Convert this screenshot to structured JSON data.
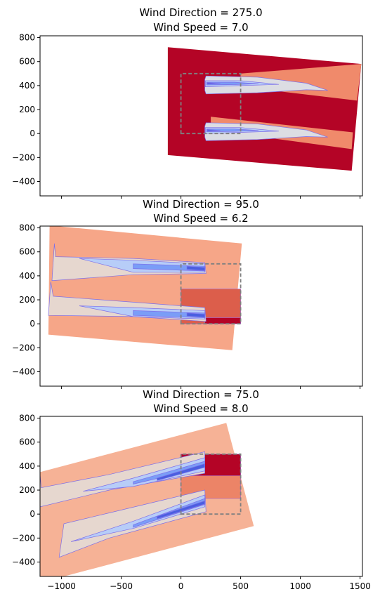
{
  "chart_data": [
    {
      "type": "heatmap",
      "title_line1": "Wind Direction = 275.0",
      "title_line2": "Wind Speed = 7.0",
      "xlim": [
        -1180,
        1520
      ],
      "ylim": [
        -520,
        815
      ],
      "yticks": [
        -400,
        -200,
        0,
        200,
        400,
        600,
        800
      ],
      "ytick_labels": [
        "−400",
        "−200",
        "0",
        "200",
        "400",
        "600",
        "800"
      ],
      "boundary": {
        "x": [
          0,
          0,
          500,
          500
        ],
        "y": [
          0,
          500,
          500,
          0
        ]
      },
      "domain_polygon": [
        [
          -110,
          -180
        ],
        [
          -110,
          720
        ],
        [
          1510,
          580
        ],
        [
          1430,
          -310
        ]
      ],
      "background_color": "#b40426",
      "wake_bands": [
        {
          "polygon": [
            [
              500,
              390
            ],
            [
              500,
              500
            ],
            [
              1510,
              580
            ],
            [
              1475,
              275
            ]
          ],
          "color": "#f08a6b"
        },
        {
          "polygon": [
            [
              250,
              30
            ],
            [
              250,
              140
            ],
            [
              1440,
              10
            ],
            [
              1430,
              -130
            ]
          ],
          "color": "#f08a6b"
        }
      ],
      "wake_contours": [
        {
          "polygon": [
            [
              200,
              360
            ],
            [
              210,
              330
            ],
            [
              640,
              340
            ],
            [
              1050,
              365
            ],
            [
              1230,
              360
            ],
            [
              1050,
              420
            ],
            [
              640,
              470
            ],
            [
              210,
              480
            ],
            [
              200,
              450
            ]
          ],
          "color": "#dcdde3"
        },
        {
          "polygon": [
            [
              205,
              390
            ],
            [
              500,
              400
            ],
            [
              820,
              410
            ],
            [
              500,
              440
            ],
            [
              205,
              440
            ]
          ],
          "color": "#b7cdf8"
        },
        {
          "polygon": [
            [
              215,
              405
            ],
            [
              450,
              408
            ],
            [
              650,
              415
            ],
            [
              450,
              428
            ],
            [
              215,
              428
            ]
          ],
          "color": "#7a9df7"
        },
        {
          "polygon": [
            [
              220,
              412
            ],
            [
              330,
              416
            ],
            [
              220,
              424
            ]
          ],
          "color": "#4a5fe0"
        },
        {
          "polygon": [
            [
              200,
              -30
            ],
            [
              210,
              -60
            ],
            [
              640,
              -50
            ],
            [
              1050,
              -25
            ],
            [
              1230,
              -30
            ],
            [
              1050,
              30
            ],
            [
              640,
              80
            ],
            [
              210,
              90
            ],
            [
              200,
              60
            ]
          ],
          "color": "#dcdde3"
        },
        {
          "polygon": [
            [
              205,
              0
            ],
            [
              500,
              10
            ],
            [
              820,
              20
            ],
            [
              500,
              50
            ],
            [
              205,
              50
            ]
          ],
          "color": "#b7cdf8"
        },
        {
          "polygon": [
            [
              215,
              15
            ],
            [
              450,
              18
            ],
            [
              650,
              25
            ],
            [
              450,
              38
            ],
            [
              215,
              38
            ]
          ],
          "color": "#7a9df7"
        },
        {
          "polygon": [
            [
              220,
              22
            ],
            [
              330,
              26
            ],
            [
              220,
              34
            ]
          ],
          "color": "#4a5fe0"
        }
      ]
    },
    {
      "type": "heatmap",
      "title_line1": "Wind Direction = 95.0",
      "title_line2": "Wind Speed = 6.2",
      "xlim": [
        -1180,
        1520
      ],
      "ylim": [
        -520,
        815
      ],
      "yticks": [
        -400,
        -200,
        0,
        200,
        400,
        600,
        800
      ],
      "ytick_labels": [
        "−400",
        "−200",
        "0",
        "200",
        "400",
        "600",
        "800"
      ],
      "boundary": {
        "x": [
          0,
          0,
          500,
          500
        ],
        "y": [
          0,
          500,
          500,
          0
        ]
      },
      "domain_polygon": [
        [
          -1100,
          820
        ],
        [
          510,
          670
        ],
        [
          430,
          -220
        ],
        [
          -1110,
          -90
        ]
      ],
      "background_color": "#f6a688",
      "patches": [
        {
          "polygon": [
            [
              0,
              0
            ],
            [
              0,
              290
            ],
            [
              500,
              290
            ],
            [
              500,
              0
            ]
          ],
          "color": "#dc5e4b"
        },
        {
          "polygon": [
            [
              200,
              0
            ],
            [
              200,
              50
            ],
            [
              500,
              50
            ],
            [
              500,
              0
            ]
          ],
          "color": "#b40426"
        }
      ],
      "wake_contours": [
        {
          "polygon": [
            [
              -1060,
              670
            ],
            [
              -1050,
              560
            ],
            [
              -400,
              545
            ],
            [
              200,
              510
            ],
            [
              210,
              420
            ],
            [
              -400,
              410
            ],
            [
              -1080,
              360
            ],
            [
              -1060,
              670
            ]
          ],
          "color": "#e6d7cf"
        },
        {
          "polygon": [
            [
              -850,
              545
            ],
            [
              -400,
              530
            ],
            [
              200,
              500
            ],
            [
              200,
              430
            ],
            [
              -400,
              430
            ],
            [
              -850,
              545
            ]
          ],
          "color": "#b7cdf8"
        },
        {
          "polygon": [
            [
              -400,
              500
            ],
            [
              200,
              480
            ],
            [
              200,
              440
            ],
            [
              -400,
              460
            ]
          ],
          "color": "#7a9df7"
        },
        {
          "polygon": [
            [
              50,
              480
            ],
            [
              200,
              470
            ],
            [
              200,
              445
            ],
            [
              50,
              455
            ]
          ],
          "color": "#4a5fe0"
        },
        {
          "polygon": [
            [
              -1090,
              350
            ],
            [
              -1070,
              230
            ],
            [
              -400,
              180
            ],
            [
              200,
              135
            ],
            [
              210,
              20
            ],
            [
              -400,
              60
            ],
            [
              -1110,
              70
            ],
            [
              -1090,
              350
            ]
          ],
          "color": "#e6d7cf"
        },
        {
          "polygon": [
            [
              -850,
              150
            ],
            [
              -400,
              135
            ],
            [
              200,
              110
            ],
            [
              200,
              40
            ],
            [
              -400,
              60
            ],
            [
              -850,
              150
            ]
          ],
          "color": "#b7cdf8"
        },
        {
          "polygon": [
            [
              -400,
              110
            ],
            [
              200,
              90
            ],
            [
              200,
              50
            ],
            [
              -400,
              70
            ]
          ],
          "color": "#7a9df7"
        },
        {
          "polygon": [
            [
              50,
              90
            ],
            [
              200,
              80
            ],
            [
              200,
              55
            ],
            [
              50,
              65
            ]
          ],
          "color": "#4a5fe0"
        }
      ]
    },
    {
      "type": "heatmap",
      "title_line1": "Wind Direction = 75.0",
      "title_line2": "Wind Speed = 8.0",
      "xlim": [
        -1180,
        1520
      ],
      "ylim": [
        -520,
        815
      ],
      "yticks": [
        -400,
        -200,
        0,
        200,
        400,
        600,
        800
      ],
      "ytick_labels": [
        "−400",
        "−200",
        "0",
        "200",
        "400",
        "600",
        "800"
      ],
      "xticks": [
        -1000,
        -500,
        0,
        500,
        1000,
        1500
      ],
      "xtick_labels": [
        "−1000",
        "−500",
        "0",
        "500",
        "1000",
        "1500"
      ],
      "boundary": {
        "x": [
          0,
          0,
          500,
          500
        ],
        "y": [
          0,
          500,
          500,
          0
        ]
      },
      "domain_polygon": [
        [
          -1180,
          350
        ],
        [
          380,
          760
        ],
        [
          610,
          -100
        ],
        [
          -980,
          -520
        ],
        [
          -1180,
          -520
        ]
      ],
      "background_color": "#f6b296",
      "patches": [
        {
          "polygon": [
            [
              0,
              130
            ],
            [
              0,
              500
            ],
            [
              500,
              500
            ],
            [
              500,
              130
            ]
          ],
          "color": "#ec8467"
        },
        {
          "polygon": [
            [
              0,
              320
            ],
            [
              0,
              500
            ],
            [
              500,
              500
            ],
            [
              500,
              320
            ]
          ],
          "color": "#b40426"
        }
      ],
      "wake_contours": [
        {
          "polygon": [
            [
              -1180,
              330
            ],
            [
              -1170,
              220
            ],
            [
              -600,
              330
            ],
            [
              200,
              520
            ],
            [
              200,
              340
            ],
            [
              -600,
              200
            ],
            [
              -1180,
              60
            ]
          ],
          "color": "#e6d7cf"
        },
        {
          "polygon": [
            [
              -820,
              190
            ],
            [
              -400,
              300
            ],
            [
              200,
              470
            ],
            [
              200,
              360
            ],
            [
              -400,
              230
            ],
            [
              -820,
              190
            ]
          ],
          "color": "#b7cdf8"
        },
        {
          "polygon": [
            [
              -400,
              270
            ],
            [
              200,
              440
            ],
            [
              200,
              390
            ],
            [
              -400,
              250
            ]
          ],
          "color": "#7a9df7"
        },
        {
          "polygon": [
            [
              -200,
              300
            ],
            [
              200,
              420
            ],
            [
              200,
              390
            ],
            [
              -200,
              280
            ]
          ],
          "color": "#4a5fe0"
        },
        {
          "polygon": [
            [
              -1020,
              -360
            ],
            [
              -980,
              -80
            ],
            [
              -600,
              10
            ],
            [
              200,
              200
            ],
            [
              210,
              20
            ],
            [
              -600,
              -200
            ],
            [
              -1020,
              -360
            ]
          ],
          "color": "#e6d7cf"
        },
        {
          "polygon": [
            [
              -920,
              -230
            ],
            [
              -400,
              -60
            ],
            [
              200,
              160
            ],
            [
              200,
              60
            ],
            [
              -400,
              -120
            ],
            [
              -920,
              -230
            ]
          ],
          "color": "#b7cdf8"
        },
        {
          "polygon": [
            [
              -400,
              -90
            ],
            [
              200,
              130
            ],
            [
              200,
              80
            ],
            [
              -400,
              -110
            ]
          ],
          "color": "#7a9df7"
        },
        {
          "polygon": [
            [
              -200,
              -20
            ],
            [
              200,
              110
            ],
            [
              200,
              85
            ],
            [
              -200,
              -40
            ]
          ],
          "color": "#4a5fe0"
        }
      ]
    }
  ]
}
